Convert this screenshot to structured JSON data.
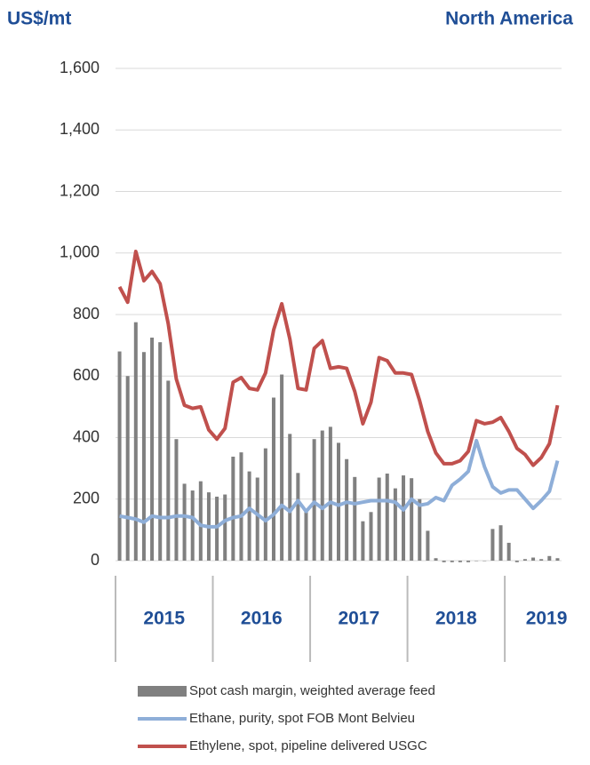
{
  "chart_data": {
    "type": "combo",
    "title": "North America",
    "y_label": "US$/mt",
    "categories": [
      null,
      null,
      null,
      null,
      null,
      null,
      null,
      null,
      null,
      null,
      null,
      null,
      null,
      null,
      null,
      null,
      null,
      null,
      null,
      null,
      null,
      null,
      null,
      null,
      null,
      null,
      null,
      null,
      null,
      null,
      null,
      null,
      null,
      null,
      null,
      null,
      null,
      null,
      null,
      null,
      null,
      null,
      null,
      null,
      null,
      null,
      null,
      null,
      null,
      null,
      null,
      null,
      null,
      null,
      null
    ],
    "year_labels": [
      "2015",
      "2016",
      "2017",
      "2018",
      "2019"
    ],
    "ylim": [
      0,
      1600
    ],
    "yticks": [
      0,
      200,
      400,
      600,
      800,
      {
        "value": 1000,
        "label": "1,000"
      },
      {
        "value": 1200,
        "label": "1,200"
      },
      {
        "value": 1400,
        "label": "1,400"
      },
      {
        "value": 1600,
        "label": "1,600"
      }
    ],
    "grid": true,
    "series": [
      {
        "name": "Spot cash margin, weighted average feed",
        "type": "bar",
        "color": "#808080",
        "values": [
          680,
          600,
          775,
          678,
          725,
          710,
          585,
          395,
          250,
          228,
          258,
          222,
          208,
          215,
          338,
          352,
          290,
          270,
          365,
          530,
          605,
          412,
          285,
          160,
          395,
          423,
          435,
          383,
          330,
          272,
          128,
          158,
          270,
          283,
          235,
          277,
          268,
          200,
          97,
          8,
          -5,
          -5,
          -5,
          -5,
          0,
          0,
          103,
          115,
          58,
          -5,
          5,
          10,
          5,
          15,
          8
        ]
      },
      {
        "name": "Ethane, purity, spot FOB Mont Belvieu",
        "type": "line",
        "color": "#8eaed8",
        "values": [
          145,
          140,
          135,
          125,
          145,
          140,
          140,
          145,
          145,
          140,
          115,
          110,
          110,
          130,
          140,
          145,
          170,
          150,
          130,
          150,
          180,
          160,
          195,
          160,
          190,
          170,
          190,
          180,
          190,
          185,
          190,
          195,
          195,
          195,
          190,
          165,
          200,
          180,
          185,
          205,
          195,
          245,
          265,
          290,
          390,
          305,
          240,
          220,
          230,
          230,
          200,
          170,
          195,
          225,
          325
        ]
      },
      {
        "name": "Ethylene, spot, pipeline delivered USGC",
        "type": "line",
        "color": "#c0504d",
        "values": [
          890,
          840,
          1005,
          910,
          940,
          900,
          770,
          590,
          505,
          495,
          500,
          425,
          395,
          430,
          580,
          595,
          560,
          555,
          610,
          750,
          835,
          720,
          560,
          555,
          690,
          715,
          625,
          630,
          625,
          550,
          445,
          515,
          660,
          650,
          610,
          610,
          605,
          520,
          420,
          350,
          315,
          315,
          325,
          355,
          455,
          445,
          450,
          465,
          420,
          365,
          345,
          310,
          335,
          380,
          505
        ]
      }
    ]
  }
}
